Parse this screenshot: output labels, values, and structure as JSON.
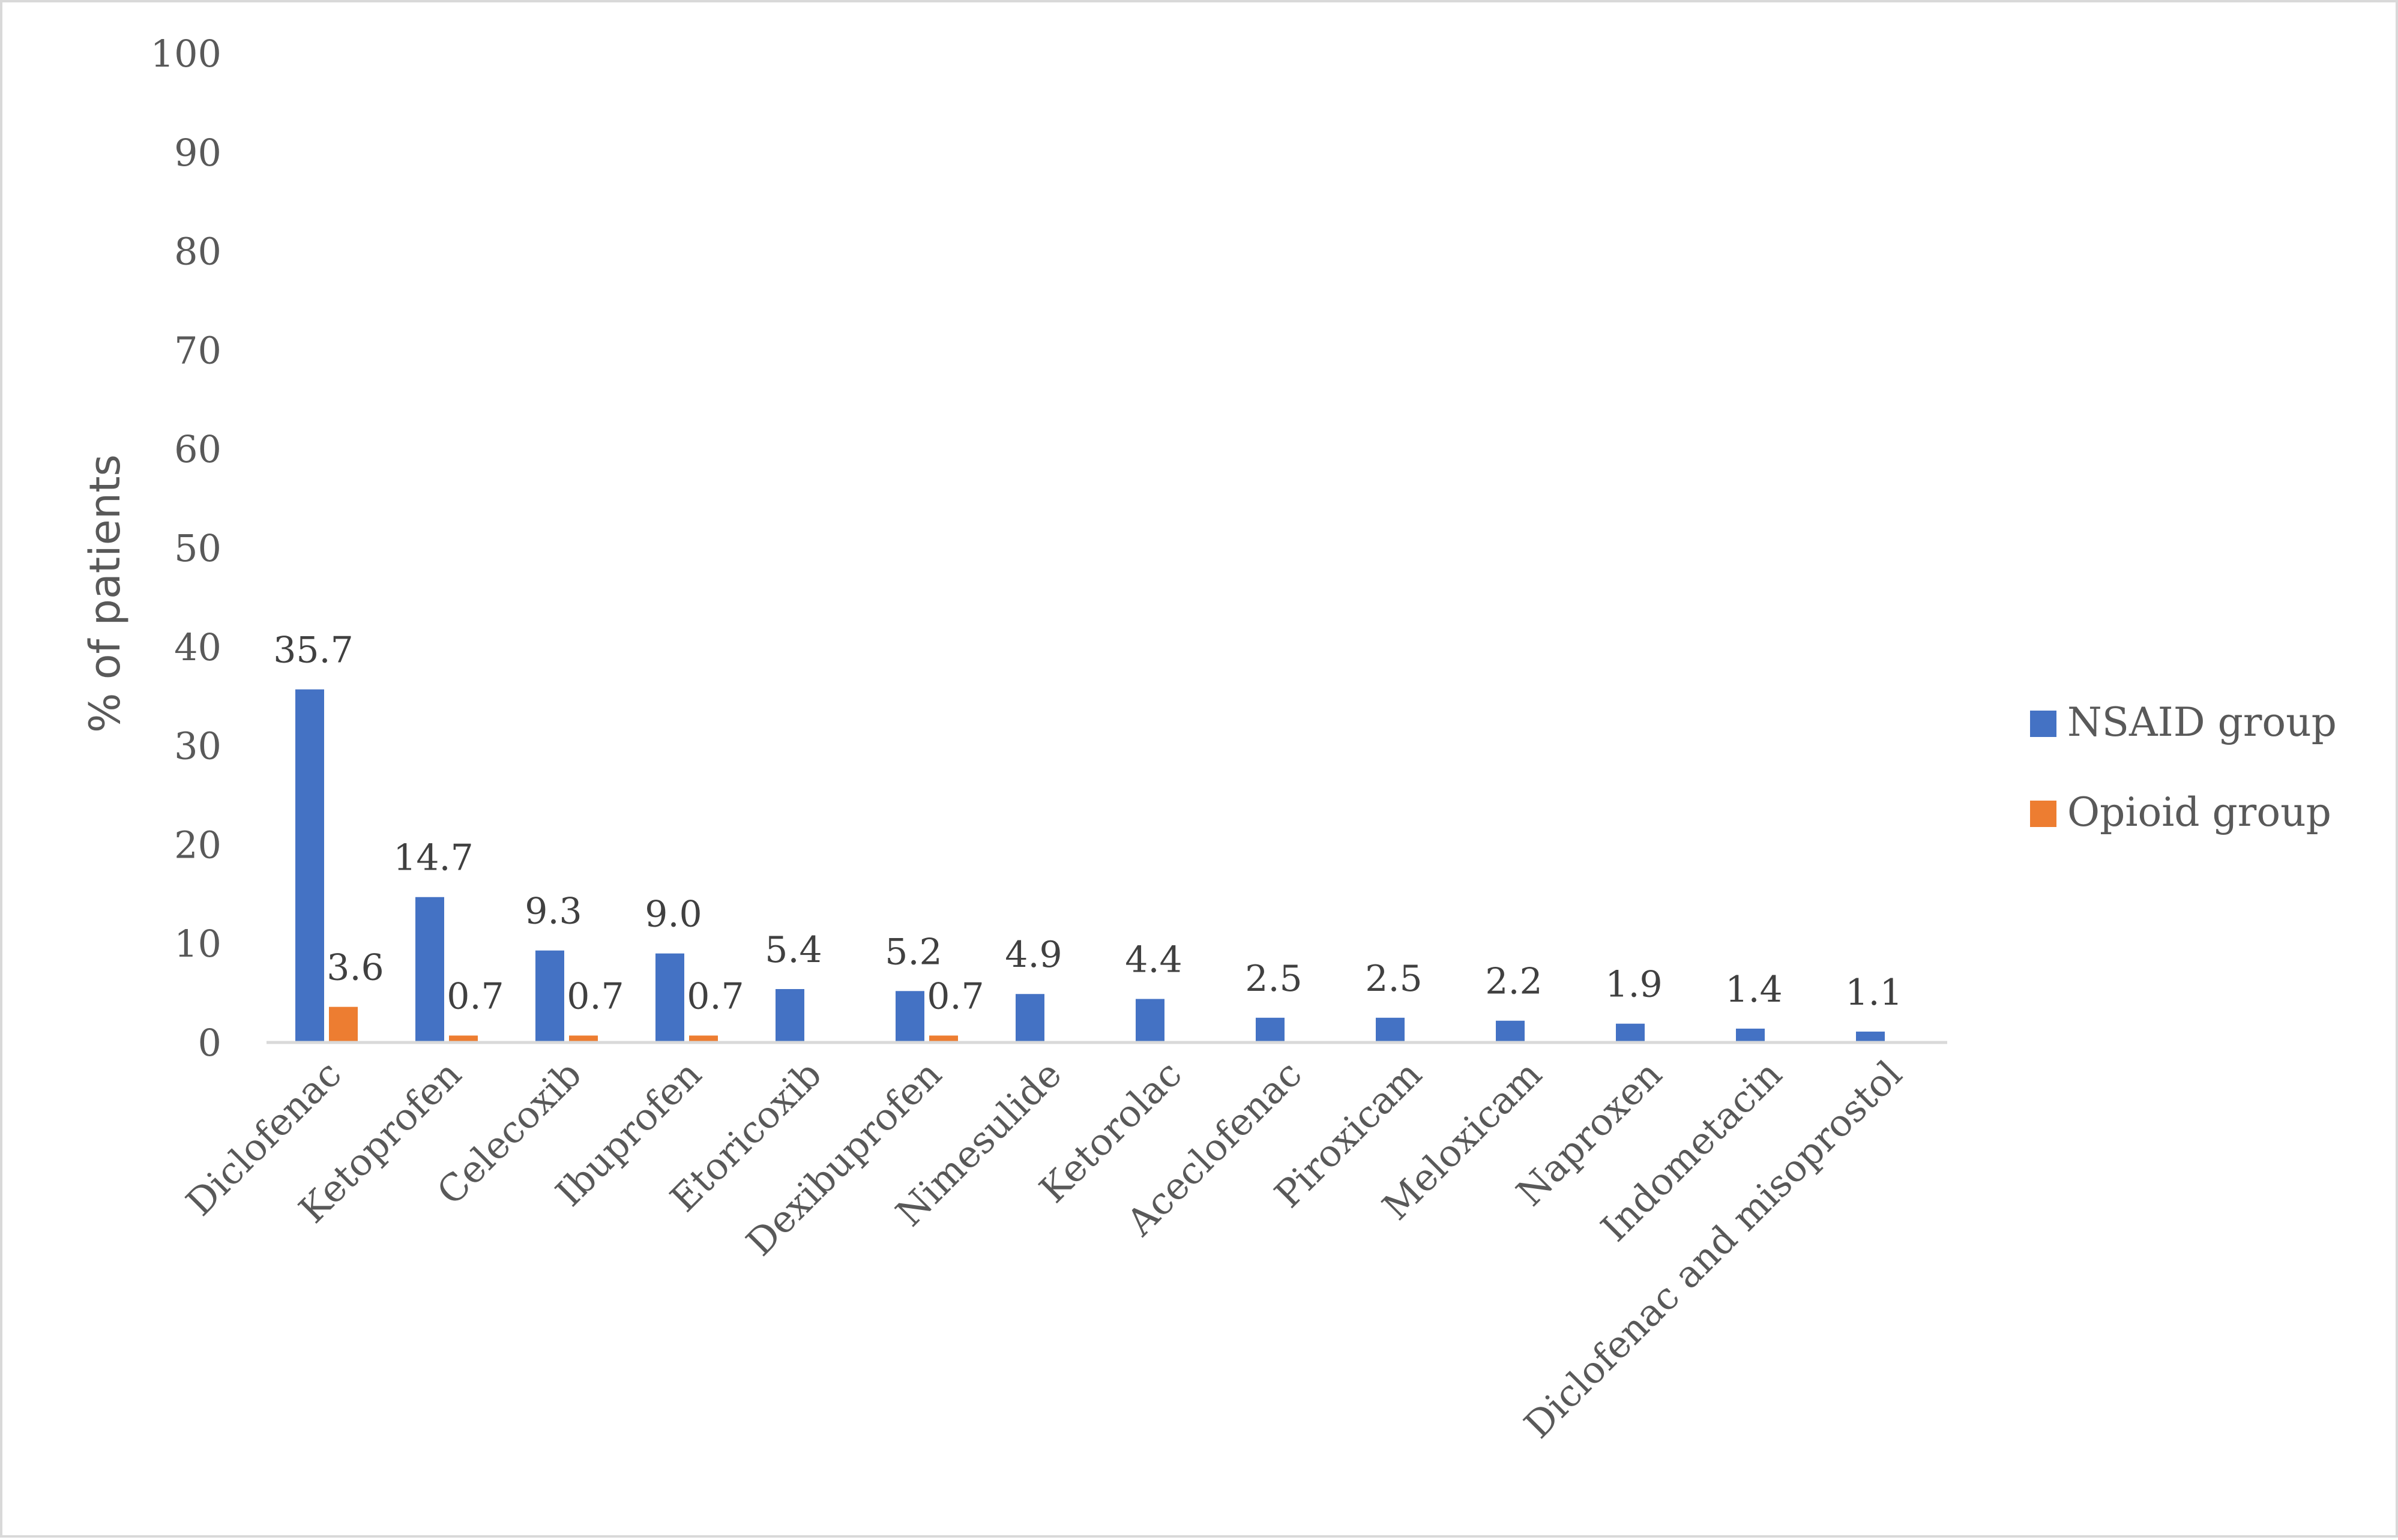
{
  "chart_data": {
    "type": "bar",
    "categories": [
      "Diclofenac",
      "Ketoprofen",
      "Celecoxib",
      "Ibuprofen",
      "Etoricoxib",
      "Dexibuprofen",
      "Nimesulide",
      "Ketorolac",
      "Aceclofenac",
      "Piroxicam",
      "Meloxicam",
      "Naproxen",
      "Indometacin",
      "Diclofenac and misoprostol"
    ],
    "series": [
      {
        "name": "NSAID group",
        "color": "#4472c4",
        "values": [
          35.7,
          14.7,
          9.3,
          9.0,
          5.4,
          5.2,
          4.9,
          4.4,
          2.5,
          2.5,
          2.2,
          1.9,
          1.4,
          1.1
        ],
        "labels": [
          "35.7",
          "14.7",
          "9.3",
          "9.0",
          "5.4",
          "5.2",
          "4.9",
          "4.4",
          "2.5",
          "2.5",
          "2.2",
          "1.9",
          "1.4",
          "1.1"
        ]
      },
      {
        "name": "Opioid group",
        "color": "#ed7d31",
        "values": [
          3.6,
          0.7,
          0.7,
          0.7,
          null,
          0.7,
          null,
          null,
          null,
          null,
          null,
          null,
          null,
          null
        ],
        "labels": [
          "3.6",
          "0.7",
          "0.7",
          "0.7",
          null,
          "0.7",
          null,
          null,
          null,
          null,
          null,
          null,
          null,
          null
        ]
      }
    ],
    "title": "",
    "xlabel": "",
    "ylabel": "% of patients",
    "ylim": [
      0,
      100
    ],
    "yticks": [
      "0",
      "10",
      "20",
      "30",
      "40",
      "50",
      "60",
      "70",
      "80",
      "90",
      "100"
    ],
    "grid": false,
    "legend": "right"
  }
}
